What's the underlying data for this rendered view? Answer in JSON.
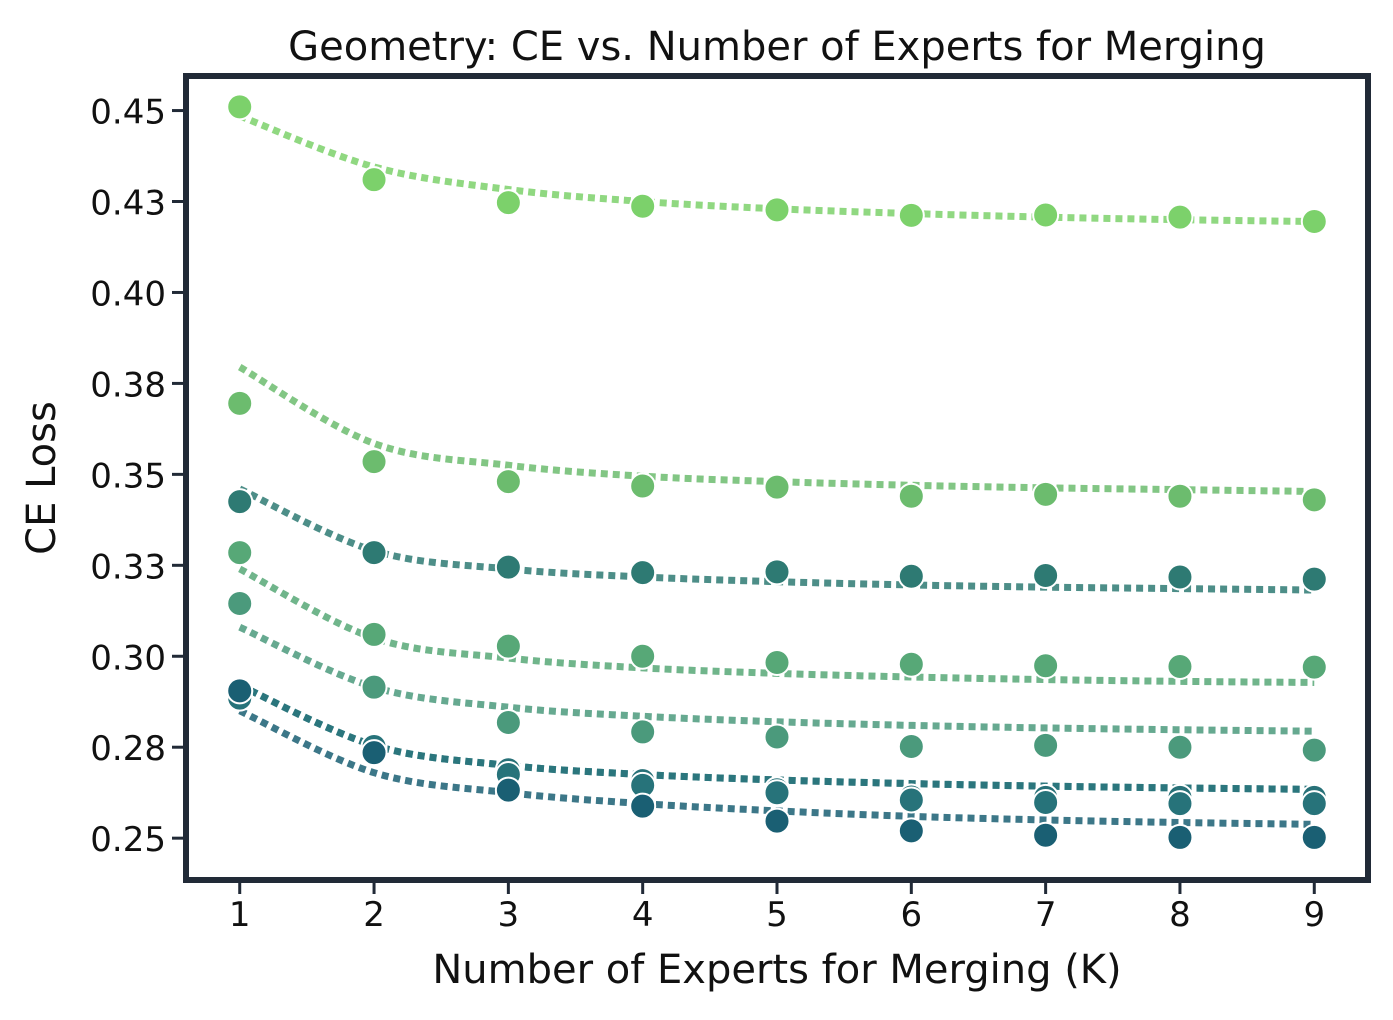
{
  "chart_data": {
    "type": "scatter",
    "title": "Geometry: CE vs. Number of Experts for Merging",
    "xlabel": "Number of Experts for Merging (K)",
    "ylabel": "CE Loss",
    "x": [
      1,
      2,
      3,
      4,
      5,
      6,
      7,
      8,
      9
    ],
    "xlim": [
      0.6,
      9.4
    ],
    "ylim": [
      0.2385,
      0.4595
    ],
    "yticks": [
      0.25,
      0.275,
      0.3,
      0.325,
      0.35,
      0.375,
      0.4,
      0.425,
      0.45
    ],
    "ytick_labels": [
      "0.25",
      "0.28",
      "0.30",
      "0.33",
      "0.35",
      "0.38",
      "0.40",
      "0.43",
      "0.45"
    ],
    "xtick_labels": [
      "1",
      "2",
      "3",
      "4",
      "5",
      "6",
      "7",
      "8",
      "9"
    ],
    "grid": false,
    "frame_color": "#212a37",
    "series": [
      {
        "color": "#7cd16b",
        "values": [
          0.451,
          0.431,
          0.4247,
          0.4237,
          0.4227,
          0.4212,
          0.4213,
          0.4207,
          0.4195
        ],
        "trend": [
          0.4485,
          0.4345,
          0.4283,
          0.425,
          0.423,
          0.4217,
          0.4207,
          0.42,
          0.4195
        ]
      },
      {
        "color": "#6cbc6e",
        "values": [
          0.3695,
          0.3535,
          0.348,
          0.3468,
          0.3465,
          0.344,
          0.3445,
          0.344,
          0.343
        ],
        "trend": [
          0.3795,
          0.3585,
          0.3525,
          0.3495,
          0.348,
          0.347,
          0.3463,
          0.3458,
          0.3453
        ]
      },
      {
        "color": "#2e7a73",
        "values": [
          0.3425,
          0.3285,
          0.3245,
          0.323,
          0.3232,
          0.322,
          0.3222,
          0.3218,
          0.3212
        ],
        "trend": [
          0.346,
          0.329,
          0.324,
          0.3218,
          0.3205,
          0.3196,
          0.319,
          0.3186,
          0.3182
        ]
      },
      {
        "color": "#57a877",
        "values": [
          0.3285,
          0.306,
          0.3028,
          0.3,
          0.2983,
          0.2978,
          0.2974,
          0.2972,
          0.297
        ],
        "trend": [
          0.324,
          0.305,
          0.2995,
          0.2968,
          0.2953,
          0.2943,
          0.2936,
          0.2931,
          0.2928
        ]
      },
      {
        "color": "#4b9a7c",
        "values": [
          0.3145,
          0.2915,
          0.2818,
          0.2792,
          0.2778,
          0.2752,
          0.2755,
          0.275,
          0.2742
        ],
        "trend": [
          0.308,
          0.2915,
          0.286,
          0.2835,
          0.282,
          0.281,
          0.2803,
          0.2798,
          0.2794
        ]
      },
      {
        "color": "#287178",
        "values": [
          0.2905,
          0.2738,
          0.2688,
          0.2658,
          0.2633,
          0.2613,
          0.2612,
          0.2612,
          0.2612
        ],
        "trend": [
          0.292,
          0.2755,
          0.27,
          0.2675,
          0.266,
          0.265,
          0.2643,
          0.2638,
          0.2634
        ]
      },
      {
        "color": "#27737a",
        "values": [
          0.2885,
          0.2752,
          0.2675,
          0.2645,
          0.2625,
          0.2605,
          0.2598,
          0.2595,
          0.2595
        ],
        "trend": [
          0.292,
          0.2755,
          0.27,
          0.2675,
          0.266,
          0.265,
          0.2643,
          0.2638,
          0.2634
        ]
      },
      {
        "color": "#1a5f73",
        "values": [
          0.2905,
          0.2735,
          0.2632,
          0.2588,
          0.2547,
          0.252,
          0.2508,
          0.2502,
          0.2502
        ],
        "trend": [
          0.285,
          0.268,
          0.2625,
          0.2595,
          0.2575,
          0.256,
          0.255,
          0.2543,
          0.2538
        ]
      }
    ]
  }
}
